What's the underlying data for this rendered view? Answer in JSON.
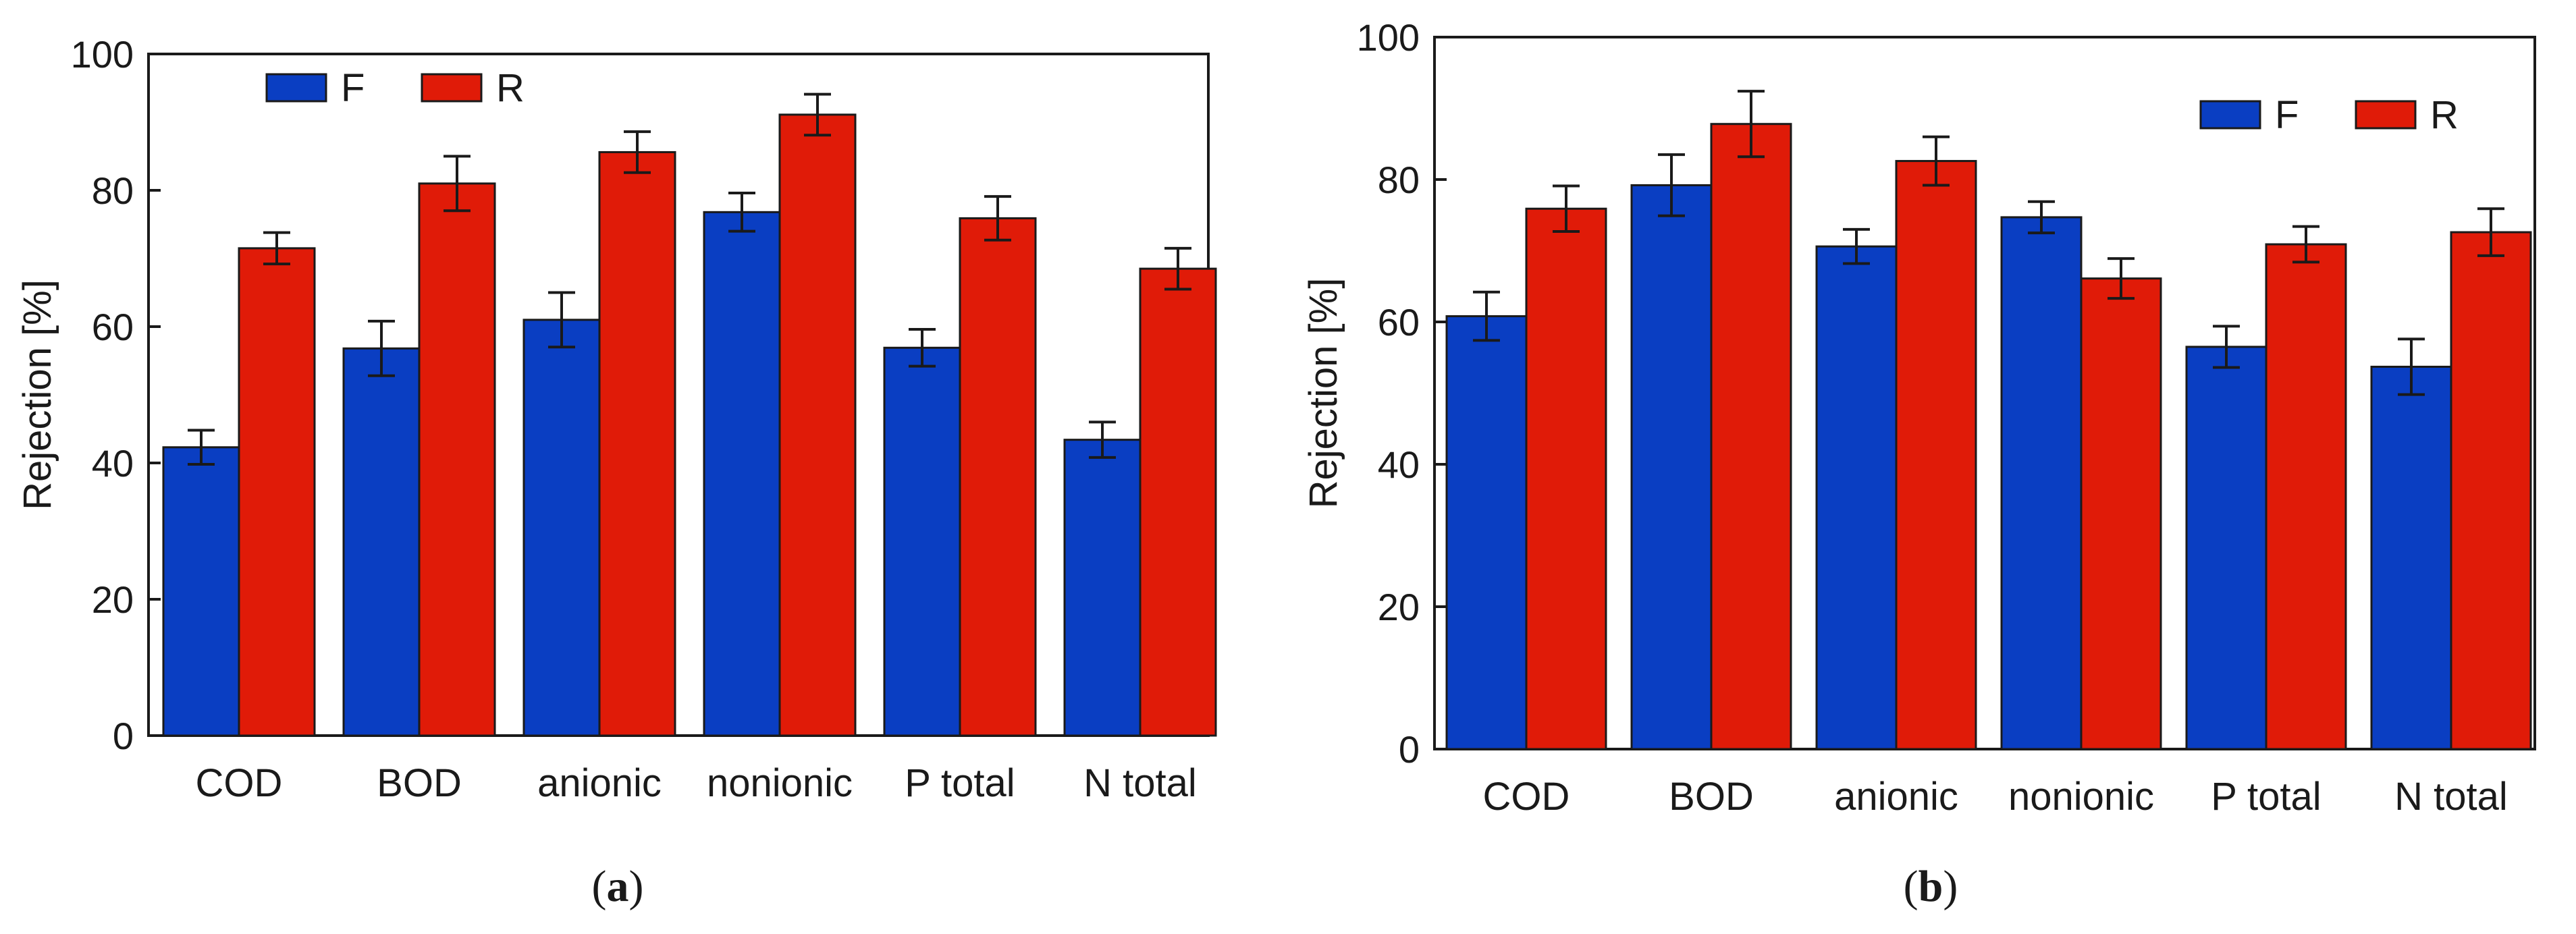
{
  "chart_data": [
    {
      "type": "bar",
      "panel_label": "a",
      "categories": [
        "COD",
        "BOD",
        "anionic",
        "nonionic",
        "P total",
        "N total"
      ],
      "series": [
        {
          "name": "F",
          "color": "#0a3ec2",
          "values": [
            42.3,
            56.8,
            61.0,
            76.8,
            56.9,
            43.4
          ],
          "errors": [
            2.5,
            4.0,
            4.0,
            2.8,
            2.7,
            2.6
          ]
        },
        {
          "name": "R",
          "color": "#e01b08",
          "values": [
            71.5,
            81.0,
            85.6,
            91.1,
            75.9,
            68.5
          ],
          "errors": [
            2.3,
            4.0,
            3.0,
            3.0,
            3.2,
            3.0
          ]
        }
      ],
      "ylabel": "Rejection [%]",
      "ylim": [
        0,
        100
      ],
      "yticks": [
        0,
        20,
        40,
        60,
        80,
        100
      ],
      "legend_position": "top-left"
    },
    {
      "type": "bar",
      "panel_label": "b",
      "categories": [
        "COD",
        "BOD",
        "anionic",
        "nonionic",
        "P total",
        "N total"
      ],
      "series": [
        {
          "name": "F",
          "color": "#0a3ec2",
          "values": [
            60.8,
            79.2,
            70.6,
            74.7,
            56.5,
            53.7
          ],
          "errors": [
            3.4,
            4.3,
            2.4,
            2.2,
            2.9,
            3.9
          ]
        },
        {
          "name": "R",
          "color": "#e01b08",
          "values": [
            75.9,
            87.8,
            82.6,
            66.1,
            70.9,
            72.6
          ],
          "errors": [
            3.2,
            4.6,
            3.4,
            2.8,
            2.5,
            3.3
          ]
        }
      ],
      "ylabel": "Rejection [%]",
      "ylim": [
        0,
        100
      ],
      "yticks": [
        0,
        20,
        40,
        60,
        80,
        100
      ],
      "legend_position": "top-right"
    }
  ]
}
